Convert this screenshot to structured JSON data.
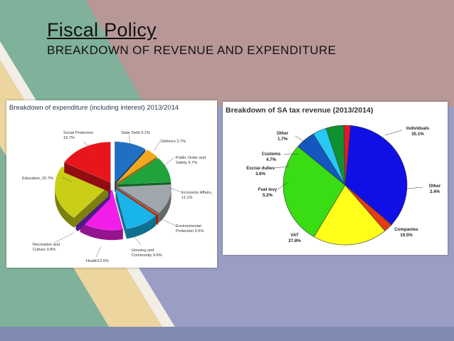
{
  "slide": {
    "title": "Fiscal Policy",
    "subtitle": "BREAKDOWN OF REVENUE AND EXPENDITURE",
    "colors": {
      "background": "#9a9ec4",
      "band_green": "#80b19a",
      "band_rose": "#b89896",
      "band_stripe": "#f2eee6",
      "band_gold": "#ecd59e"
    }
  },
  "chart_data": [
    {
      "type": "pie",
      "title": "Breakdown of expenditure (including interest) 2013/2014",
      "style": "3d-exploded",
      "slices": [
        {
          "label": "State Debt",
          "value": 9.1,
          "display": "State Debt 9.1%",
          "color": "#1f6fc2"
        },
        {
          "label": "Defence",
          "value": 3.7,
          "display": "Defence 3.7%",
          "color": "#f2a81c"
        },
        {
          "label": "Public Order and Safety",
          "value": 9.7,
          "display": "Public Order and Safety 9.7%",
          "color": "#1fa33c"
        },
        {
          "label": "Economic Affairs",
          "value": 11.1,
          "display": "Economic Affairs, 11.1%",
          "color": "#9fa7ad"
        },
        {
          "label": "Environmental Protection",
          "value": 0.5,
          "display": "Environmental Protection 0.5%",
          "color": "#e04a22"
        },
        {
          "label": "Housing and Community",
          "value": 9.6,
          "display": "Housing and Community 9.6%",
          "color": "#19b4ea"
        },
        {
          "label": "Health",
          "value": 12.6,
          "display": "Health12.6%",
          "color": "#f21ee8"
        },
        {
          "label": "Recreation and Culture",
          "value": 0.8,
          "display": "Recreation and Culture 0.8%",
          "color": "#7a2be0"
        },
        {
          "label": "Education",
          "value": 20.7,
          "display": "Education, 20.7%",
          "color": "#c9ce16"
        },
        {
          "label": "Social Protection",
          "value": 15.7,
          "display": "Social Protection 15.7%",
          "color": "#e8151d"
        }
      ]
    },
    {
      "type": "pie",
      "title": "Breakdown of SA tax revenue (2013/2014)",
      "slices": [
        {
          "label": "Individuals",
          "value": 35.1,
          "display": "35.1%",
          "color": "#1010e6"
        },
        {
          "label": "Other",
          "value": 2.4,
          "display": "2.4%",
          "color": "#e43d12"
        },
        {
          "label": "Companies",
          "value": 19.5,
          "display": "19.5%",
          "color": "#ffff1a"
        },
        {
          "label": "VAT",
          "value": 27.8,
          "display": "27.8%",
          "color": "#3adc14"
        },
        {
          "label": "Fuel levy",
          "value": 5.2,
          "display": "5.2%",
          "color": "#1457c0"
        },
        {
          "label": "Excise duties",
          "value": 3.6,
          "display": "3.6%",
          "color": "#28c8f4"
        },
        {
          "label": "Customs",
          "value": 4.7,
          "display": "4.7%",
          "color": "#0f9130"
        },
        {
          "label": "Other",
          "value": 1.7,
          "display": "1.7%",
          "color": "#e5172c"
        }
      ]
    }
  ]
}
